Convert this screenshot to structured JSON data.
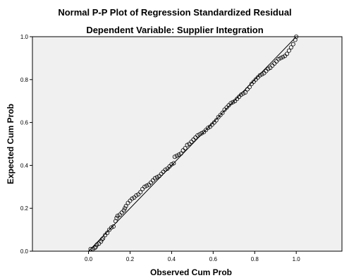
{
  "chart_data": {
    "type": "scatter",
    "title": "Normal P-P Plot of Regression Standardized Residual",
    "subtitle": "Dependent Variable: Supplier Integration",
    "xlabel": "Observed Cum Prob",
    "ylabel": "Expected Cum Prob",
    "xlim": [
      -0.27,
      1.22
    ],
    "ylim": [
      0.0,
      1.0
    ],
    "x_ticks": [
      "0.0",
      "0.2",
      "0.4",
      "0.6",
      "0.8",
      "1.0"
    ],
    "y_ticks": [
      "0.0",
      "0.2",
      "0.4",
      "0.6",
      "0.8",
      "1.0"
    ],
    "grid": false,
    "reference_line": [
      [
        0,
        0
      ],
      [
        1,
        1
      ]
    ],
    "series": [
      {
        "points": [
          [
            0.01,
            0.01
          ],
          [
            0.02,
            0.01
          ],
          [
            0.03,
            0.015
          ],
          [
            0.035,
            0.02
          ],
          [
            0.04,
            0.03
          ],
          [
            0.05,
            0.035
          ],
          [
            0.06,
            0.045
          ],
          [
            0.065,
            0.055
          ],
          [
            0.07,
            0.06
          ],
          [
            0.08,
            0.075
          ],
          [
            0.09,
            0.085
          ],
          [
            0.1,
            0.1
          ],
          [
            0.11,
            0.11
          ],
          [
            0.12,
            0.115
          ],
          [
            0.13,
            0.14
          ],
          [
            0.135,
            0.155
          ],
          [
            0.14,
            0.165
          ],
          [
            0.15,
            0.17
          ],
          [
            0.16,
            0.18
          ],
          [
            0.17,
            0.19
          ],
          [
            0.175,
            0.2
          ],
          [
            0.18,
            0.21
          ],
          [
            0.19,
            0.225
          ],
          [
            0.2,
            0.235
          ],
          [
            0.21,
            0.245
          ],
          [
            0.22,
            0.25
          ],
          [
            0.23,
            0.26
          ],
          [
            0.24,
            0.265
          ],
          [
            0.25,
            0.275
          ],
          [
            0.26,
            0.29
          ],
          [
            0.27,
            0.3
          ],
          [
            0.28,
            0.305
          ],
          [
            0.29,
            0.31
          ],
          [
            0.3,
            0.32
          ],
          [
            0.31,
            0.33
          ],
          [
            0.32,
            0.34
          ],
          [
            0.33,
            0.345
          ],
          [
            0.34,
            0.35
          ],
          [
            0.35,
            0.36
          ],
          [
            0.36,
            0.37
          ],
          [
            0.37,
            0.38
          ],
          [
            0.38,
            0.385
          ],
          [
            0.39,
            0.395
          ],
          [
            0.4,
            0.405
          ],
          [
            0.41,
            0.41
          ],
          [
            0.415,
            0.44
          ],
          [
            0.425,
            0.445
          ],
          [
            0.435,
            0.45
          ],
          [
            0.445,
            0.455
          ],
          [
            0.455,
            0.47
          ],
          [
            0.465,
            0.48
          ],
          [
            0.475,
            0.495
          ],
          [
            0.485,
            0.5
          ],
          [
            0.495,
            0.51
          ],
          [
            0.505,
            0.52
          ],
          [
            0.515,
            0.53
          ],
          [
            0.525,
            0.54
          ],
          [
            0.535,
            0.545
          ],
          [
            0.545,
            0.55
          ],
          [
            0.555,
            0.555
          ],
          [
            0.565,
            0.565
          ],
          [
            0.575,
            0.575
          ],
          [
            0.585,
            0.58
          ],
          [
            0.595,
            0.59
          ],
          [
            0.605,
            0.6
          ],
          [
            0.615,
            0.61
          ],
          [
            0.625,
            0.625
          ],
          [
            0.635,
            0.635
          ],
          [
            0.645,
            0.645
          ],
          [
            0.655,
            0.66
          ],
          [
            0.665,
            0.67
          ],
          [
            0.675,
            0.68
          ],
          [
            0.685,
            0.69
          ],
          [
            0.695,
            0.695
          ],
          [
            0.705,
            0.7
          ],
          [
            0.715,
            0.71
          ],
          [
            0.725,
            0.72
          ],
          [
            0.735,
            0.73
          ],
          [
            0.745,
            0.735
          ],
          [
            0.755,
            0.74
          ],
          [
            0.765,
            0.755
          ],
          [
            0.775,
            0.765
          ],
          [
            0.785,
            0.78
          ],
          [
            0.795,
            0.79
          ],
          [
            0.805,
            0.8
          ],
          [
            0.815,
            0.81
          ],
          [
            0.825,
            0.82
          ],
          [
            0.835,
            0.825
          ],
          [
            0.845,
            0.83
          ],
          [
            0.855,
            0.84
          ],
          [
            0.865,
            0.85
          ],
          [
            0.875,
            0.855
          ],
          [
            0.885,
            0.865
          ],
          [
            0.895,
            0.875
          ],
          [
            0.905,
            0.885
          ],
          [
            0.915,
            0.895
          ],
          [
            0.925,
            0.9
          ],
          [
            0.935,
            0.905
          ],
          [
            0.945,
            0.91
          ],
          [
            0.955,
            0.92
          ],
          [
            0.965,
            0.935
          ],
          [
            0.975,
            0.95
          ],
          [
            0.985,
            0.965
          ],
          [
            0.995,
            0.985
          ],
          [
            1.0,
            1.0
          ]
        ]
      }
    ]
  }
}
